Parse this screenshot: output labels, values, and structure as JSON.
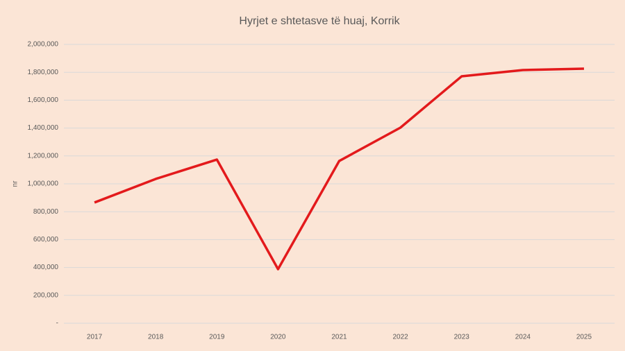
{
  "chart_data": {
    "type": "line",
    "title": "Hyrjet e shtetasve të huaj, Korrik",
    "y_label": "nr",
    "categories": [
      "2017",
      "2018",
      "2019",
      "2020",
      "2021",
      "2022",
      "2023",
      "2024",
      "2025"
    ],
    "series": [
      {
        "color": "#e31a1c",
        "values": [
          866000,
          1035000,
          1174000,
          388000,
          1164000,
          1403000,
          1771000,
          1816000,
          1826000
        ]
      }
    ],
    "ylim": [
      0,
      2000000
    ],
    "yticks": [
      {
        "value": 0,
        "label": "-"
      },
      {
        "value": 200000,
        "label": "200,000"
      },
      {
        "value": 400000,
        "label": "400,000"
      },
      {
        "value": 600000,
        "label": "600,000"
      },
      {
        "value": 800000,
        "label": "800,000"
      },
      {
        "value": 1000000,
        "label": "1,000,000"
      },
      {
        "value": 1200000,
        "label": "1,200,000"
      },
      {
        "value": 1400000,
        "label": "1,400,000"
      },
      {
        "value": 1600000,
        "label": "1,600,000"
      },
      {
        "value": 1800000,
        "label": "1,800,000"
      },
      {
        "value": 2000000,
        "label": "2,000,000"
      }
    ],
    "grid": true
  }
}
